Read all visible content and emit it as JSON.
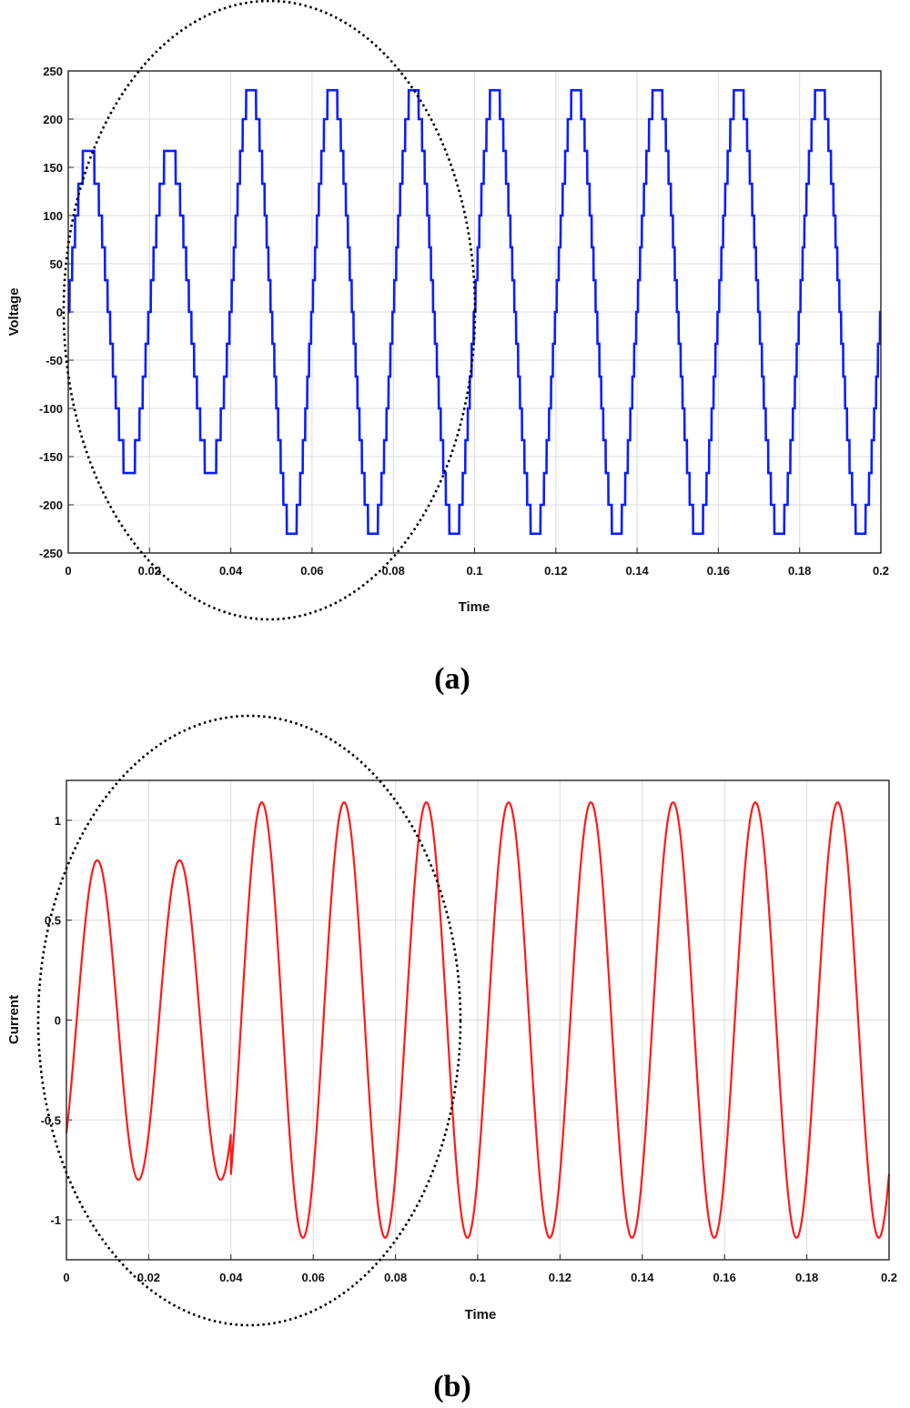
{
  "chart_data": [
    {
      "panel": "(a)",
      "type": "line",
      "waveform": "staircase",
      "xlabel": "Time",
      "ylabel": "Voltage",
      "xlim": [
        0,
        0.2
      ],
      "ylim": [
        -250,
        250
      ],
      "xticks": [
        0,
        0.02,
        0.04,
        0.06,
        0.08,
        0.1,
        0.12,
        0.14,
        0.16,
        0.18,
        0.2
      ],
      "xtick_labels": [
        "0",
        "0.02",
        "0.04",
        "0.06",
        "0.08",
        "0.1",
        "0.12",
        "0.14",
        "0.16",
        "0.18",
        "0.2"
      ],
      "yticks": [
        -250,
        -200,
        -150,
        -100,
        -50,
        0,
        50,
        100,
        150,
        200,
        250
      ],
      "ytick_labels": [
        "-250",
        "-200",
        "-150",
        "-100",
        "-50",
        "0",
        "50",
        "100",
        "150",
        "200",
        "250"
      ],
      "grid": true,
      "color": "#0a1eff",
      "series": [
        {
          "name": "Voltage",
          "frequency_hz": 50,
          "segments": [
            {
              "t_start": 0,
              "t_end": 0.04,
              "amplitude": 167,
              "levels": [
                33,
                67,
                100,
                133,
                167
              ]
            },
            {
              "t_start": 0.04,
              "t_end": 0.2,
              "amplitude": 230,
              "levels": [
                33,
                67,
                100,
                133,
                167,
                200,
                230
              ]
            }
          ]
        }
      ],
      "annotation": "dotted ellipse highlighting transient region 0-0.08"
    },
    {
      "panel": "(b)",
      "type": "line",
      "xlabel": "Time",
      "ylabel": "Current",
      "xlim": [
        0,
        0.2
      ],
      "ylim": [
        -1.2,
        1.2
      ],
      "xticks": [
        0,
        0.02,
        0.04,
        0.06,
        0.08,
        0.1,
        0.12,
        0.14,
        0.16,
        0.18,
        0.2
      ],
      "xtick_labels": [
        "0",
        "0.02",
        "0.04",
        "0.06",
        "0.08",
        "0.1",
        "0.12",
        "0.14",
        "0.16",
        "0.18",
        "0.2"
      ],
      "yticks": [
        -1,
        -0.5,
        0,
        0.5,
        1
      ],
      "ytick_labels": [
        "-1",
        "-0.5",
        "0",
        "0.5",
        "1"
      ],
      "grid": true,
      "color": "#ff1a1a",
      "series": [
        {
          "name": "Current",
          "frequency_hz": 50,
          "phase_lag_s": 0.0025,
          "segments": [
            {
              "t_start": 0,
              "t_end": 0.04,
              "amplitude": 0.8
            },
            {
              "t_start": 0.04,
              "t_end": 0.2,
              "amplitude": 1.09
            }
          ]
        }
      ],
      "annotation": "dotted ellipse highlighting transient region 0-0.08"
    }
  ],
  "captions": {
    "a": "(a)",
    "b": "(b)"
  }
}
